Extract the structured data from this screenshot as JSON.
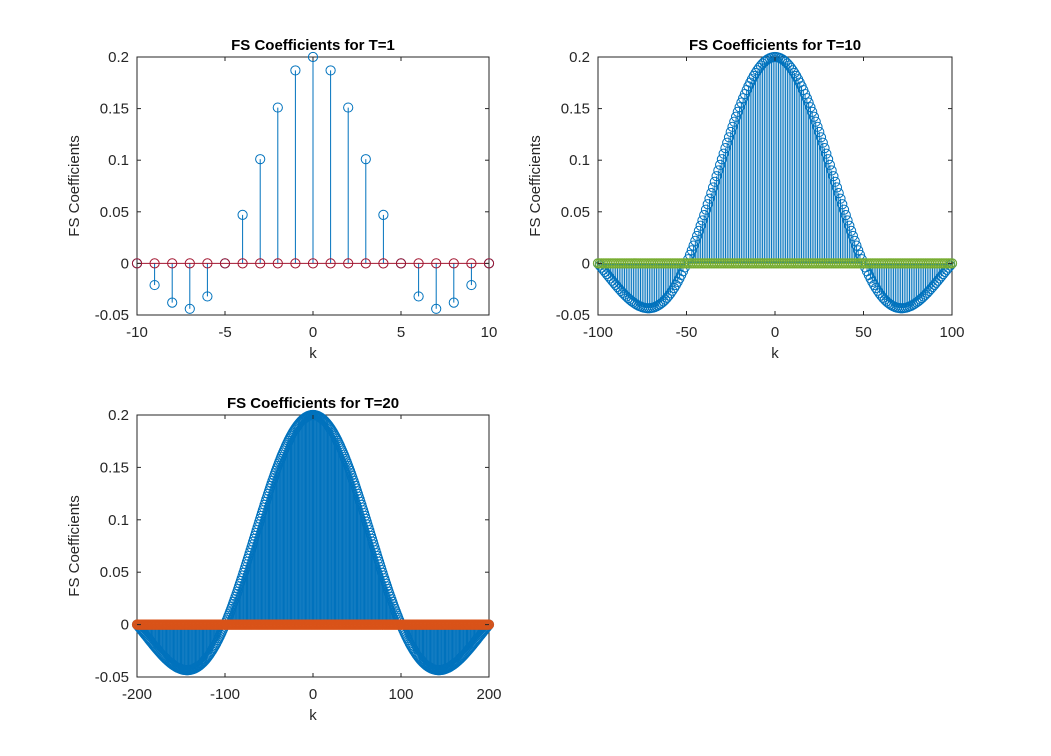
{
  "figure": {
    "background": "#ffffff"
  },
  "chart_data": [
    {
      "type": "stem",
      "title": "FS Coefficients for T=1",
      "xlabel": "k",
      "ylabel": "FS Coefficients",
      "xlim": [
        -10,
        10
      ],
      "ylim": [
        -0.05,
        0.2
      ],
      "xticks": [
        -10,
        -5,
        0,
        5,
        10
      ],
      "yticks": [
        -0.05,
        0,
        0.05,
        0.1,
        0.15,
        0.2
      ],
      "yticklabels": [
        "-0.05",
        "0",
        "0.05",
        "0.1",
        "0.15",
        "0.2"
      ],
      "series": [
        {
          "style": "stem-hollow",
          "color": "#0072BD",
          "x": [
            -10,
            -9,
            -8,
            -7,
            -6,
            -5,
            -4,
            -3,
            -2,
            -1,
            0,
            1,
            2,
            3,
            4,
            5,
            6,
            7,
            8,
            9,
            10
          ],
          "y": [
            0,
            -0.021,
            -0.038,
            -0.044,
            -0.032,
            0,
            0.047,
            0.101,
            0.151,
            0.187,
            0.2,
            0.187,
            0.151,
            0.101,
            0.047,
            0,
            -0.032,
            -0.044,
            -0.038,
            -0.021,
            0
          ]
        },
        {
          "style": "markers-hollow",
          "color": "#A2142F",
          "x": [
            -10,
            -9,
            -8,
            -7,
            -6,
            -5,
            -4,
            -3,
            -2,
            -1,
            0,
            1,
            2,
            3,
            4,
            5,
            6,
            7,
            8,
            9,
            10
          ],
          "y": [
            0,
            0,
            0,
            0,
            0,
            0,
            0,
            0,
            0,
            0,
            0,
            0,
            0,
            0,
            0,
            0,
            0,
            0,
            0,
            0,
            0
          ],
          "line": true
        }
      ]
    },
    {
      "type": "stem",
      "title": "FS Coefficients for T=10",
      "xlabel": "k",
      "ylabel": "FS Coefficients",
      "xlim": [
        -100,
        100
      ],
      "ylim": [
        -0.05,
        0.2
      ],
      "xticks": [
        -100,
        -50,
        0,
        50,
        100
      ],
      "yticks": [
        -0.05,
        0,
        0.05,
        0.1,
        0.15,
        0.2
      ],
      "yticklabels": [
        "-0.05",
        "0",
        "0.05",
        "0.1",
        "0.15",
        "0.2"
      ],
      "series": [
        {
          "style": "stem-hollow",
          "color": "#0072BD",
          "function": "0.2*sinc(k/50)",
          "x_range": [
            -100,
            100
          ],
          "x_step": 1
        },
        {
          "style": "markers-hollow",
          "color": "#77AC30",
          "constant": 0,
          "x_range": [
            -100,
            100
          ],
          "x_step": 1,
          "line": true
        }
      ]
    },
    {
      "type": "stem",
      "title": "FS Coefficients for T=20",
      "xlabel": "k",
      "ylabel": "FS Coefficients",
      "xlim": [
        -200,
        200
      ],
      "ylim": [
        -0.05,
        0.2
      ],
      "xticks": [
        -200,
        -100,
        0,
        100,
        200
      ],
      "yticks": [
        -0.05,
        0,
        0.05,
        0.1,
        0.15,
        0.2
      ],
      "yticklabels": [
        "-0.05",
        "0",
        "0.05",
        "0.1",
        "0.15",
        "0.2"
      ],
      "series": [
        {
          "style": "stem-hollow",
          "color": "#0072BD",
          "function": "0.2*sinc(k/100)",
          "x_range": [
            -200,
            200
          ],
          "x_step": 1
        },
        {
          "style": "markers-hollow",
          "color": "#D95319",
          "constant": 0,
          "x_range": [
            -200,
            200
          ],
          "x_step": 1,
          "line": true
        }
      ]
    }
  ]
}
